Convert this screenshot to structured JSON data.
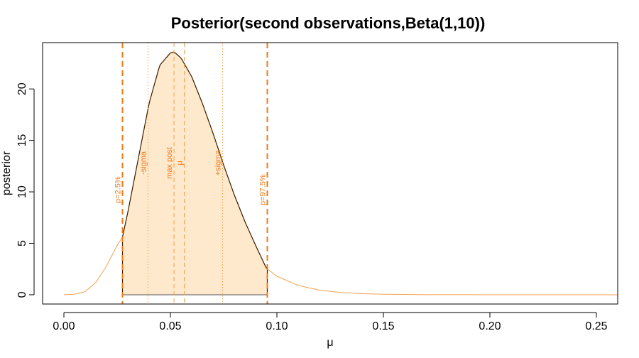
{
  "chart_data": {
    "type": "area",
    "title": "Posterior(second observations,Beta(1,10))",
    "xlabel": "μ",
    "ylabel": "posterior",
    "xlim": [
      -0.01,
      0.26
    ],
    "ylim": [
      -0.9,
      24.5
    ],
    "x_ticks": [
      0.0,
      0.05,
      0.1,
      0.15,
      0.2,
      0.25
    ],
    "x_tick_labels": [
      "0.00",
      "0.05",
      "0.10",
      "0.15",
      "0.20",
      "0.25"
    ],
    "y_ticks": [
      0,
      5,
      10,
      15,
      20
    ],
    "y_tick_labels": [
      "0",
      "5",
      "10",
      "15",
      "20"
    ],
    "grid": false,
    "density": {
      "name": "",
      "x": [
        0.0,
        0.005,
        0.01,
        0.015,
        0.02,
        0.025,
        0.0275,
        0.03,
        0.035,
        0.04,
        0.045,
        0.05,
        0.0517,
        0.055,
        0.06,
        0.065,
        0.07,
        0.075,
        0.08,
        0.085,
        0.09,
        0.095,
        0.1,
        0.11,
        0.12,
        0.13,
        0.14,
        0.15,
        0.17,
        0.2,
        0.23,
        0.26
      ],
      "y": [
        0,
        0.05,
        0.3,
        1.2,
        2.8,
        4.8,
        5.6,
        8.0,
        13.3,
        18.6,
        22.3,
        23.5,
        23.6,
        23.0,
        21.2,
        18.6,
        15.7,
        12.6,
        9.7,
        7.1,
        4.8,
        2.6,
        1.8,
        0.9,
        0.45,
        0.22,
        0.1,
        0.05,
        0.01,
        0.0,
        0.0,
        0.0
      ],
      "color": "#f4a04f"
    },
    "credible_region": {
      "x_low": 0.0275,
      "x_high": 0.0955,
      "fill_color": "#ffe9cc",
      "edge_color": "#3a2000"
    },
    "annotations": [
      {
        "label": "p=2.5%",
        "x": 0.0275,
        "style": "dashed-thick",
        "color": "#ee7a1a"
      },
      {
        "label": "-sigma",
        "x": 0.0395,
        "style": "dotted",
        "color": "#f4a04f"
      },
      {
        "label": "max post",
        "x": 0.0517,
        "style": "dashed",
        "color": "#f4a04f"
      },
      {
        "label": "μ",
        "x": 0.0565,
        "style": "dashed",
        "color": "#f4a04f"
      },
      {
        "label": "+sigma",
        "x": 0.0745,
        "style": "dotted",
        "color": "#f4a04f"
      },
      {
        "label": "p=97.5%",
        "x": 0.0955,
        "style": "dashed-thick",
        "color": "#ee7a1a"
      }
    ]
  }
}
